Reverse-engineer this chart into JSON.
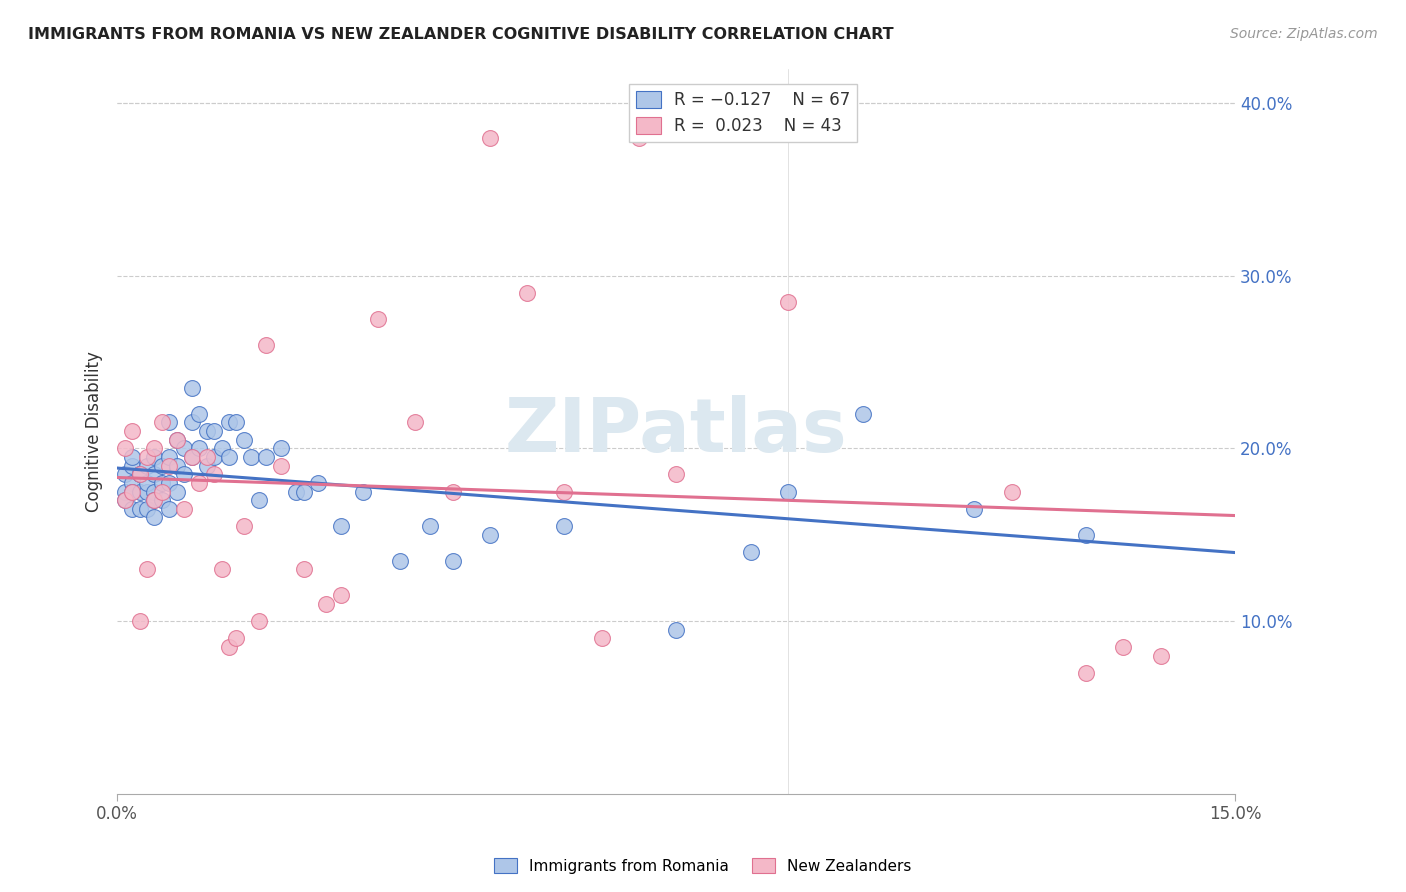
{
  "title": "IMMIGRANTS FROM ROMANIA VS NEW ZEALANDER COGNITIVE DISABILITY CORRELATION CHART",
  "source": "Source: ZipAtlas.com",
  "ylabel": "Cognitive Disability",
  "xlim": [
    0.0,
    0.15
  ],
  "ylim": [
    0.0,
    0.42
  ],
  "y_ticks_right": [
    0.0,
    0.1,
    0.2,
    0.3,
    0.4
  ],
  "y_tick_labels_right": [
    "",
    "10.0%",
    "20.0%",
    "30.0%",
    "40.0%"
  ],
  "color_blue": "#aec6e8",
  "color_pink": "#f4b8c8",
  "line_blue": "#4472c4",
  "line_pink": "#e07090",
  "watermark": "ZIPatlas",
  "watermark_color": "#dce8f0",
  "blue_scatter_x": [
    0.001,
    0.001,
    0.001,
    0.002,
    0.002,
    0.002,
    0.002,
    0.002,
    0.003,
    0.003,
    0.003,
    0.003,
    0.004,
    0.004,
    0.004,
    0.004,
    0.005,
    0.005,
    0.005,
    0.005,
    0.005,
    0.006,
    0.006,
    0.006,
    0.007,
    0.007,
    0.007,
    0.007,
    0.008,
    0.008,
    0.008,
    0.009,
    0.009,
    0.01,
    0.01,
    0.01,
    0.011,
    0.011,
    0.012,
    0.012,
    0.013,
    0.013,
    0.014,
    0.015,
    0.015,
    0.016,
    0.017,
    0.018,
    0.019,
    0.02,
    0.022,
    0.024,
    0.025,
    0.027,
    0.03,
    0.033,
    0.038,
    0.042,
    0.045,
    0.05,
    0.06,
    0.075,
    0.085,
    0.09,
    0.1,
    0.115,
    0.13
  ],
  "blue_scatter_y": [
    0.175,
    0.185,
    0.17,
    0.18,
    0.175,
    0.165,
    0.19,
    0.195,
    0.185,
    0.175,
    0.165,
    0.185,
    0.19,
    0.175,
    0.165,
    0.18,
    0.195,
    0.185,
    0.175,
    0.17,
    0.16,
    0.19,
    0.18,
    0.17,
    0.215,
    0.195,
    0.18,
    0.165,
    0.205,
    0.19,
    0.175,
    0.2,
    0.185,
    0.235,
    0.215,
    0.195,
    0.22,
    0.2,
    0.21,
    0.19,
    0.21,
    0.195,
    0.2,
    0.215,
    0.195,
    0.215,
    0.205,
    0.195,
    0.17,
    0.195,
    0.2,
    0.175,
    0.175,
    0.18,
    0.155,
    0.175,
    0.135,
    0.155,
    0.135,
    0.15,
    0.155,
    0.095,
    0.14,
    0.175,
    0.22,
    0.165,
    0.15
  ],
  "pink_scatter_x": [
    0.001,
    0.001,
    0.002,
    0.002,
    0.003,
    0.003,
    0.004,
    0.004,
    0.005,
    0.005,
    0.006,
    0.006,
    0.007,
    0.008,
    0.009,
    0.01,
    0.011,
    0.012,
    0.013,
    0.014,
    0.015,
    0.016,
    0.017,
    0.019,
    0.02,
    0.022,
    0.025,
    0.028,
    0.03,
    0.035,
    0.04,
    0.045,
    0.05,
    0.055,
    0.06,
    0.065,
    0.07,
    0.075,
    0.09,
    0.12,
    0.13,
    0.135,
    0.14
  ],
  "pink_scatter_y": [
    0.2,
    0.17,
    0.21,
    0.175,
    0.185,
    0.1,
    0.195,
    0.13,
    0.17,
    0.2,
    0.215,
    0.175,
    0.19,
    0.205,
    0.165,
    0.195,
    0.18,
    0.195,
    0.185,
    0.13,
    0.085,
    0.09,
    0.155,
    0.1,
    0.26,
    0.19,
    0.13,
    0.11,
    0.115,
    0.275,
    0.215,
    0.175,
    0.38,
    0.29,
    0.175,
    0.09,
    0.38,
    0.185,
    0.285,
    0.175,
    0.07,
    0.085,
    0.08
  ],
  "grid_color": "#cccccc",
  "spine_color": "#aaaaaa"
}
